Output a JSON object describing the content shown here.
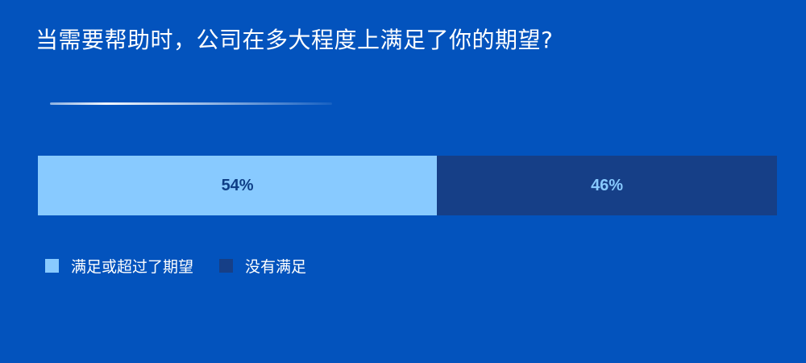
{
  "title": "当需要帮助时，公司在多大程度上满足了你的期望?",
  "colors": {
    "background": "#0353BD",
    "series_1": "#88CAFF",
    "series_2": "#163F87",
    "label_on_light": "#0E3E86",
    "label_on_dark": "#88CAFF"
  },
  "chart_data": {
    "type": "bar",
    "orientation": "horizontal-stacked-100",
    "title": "当需要帮助时，公司在多大程度上满足了你的期望?",
    "unit": "%",
    "series": [
      {
        "name": "满足或超过了期望",
        "values": [
          54
        ],
        "label": "54%"
      },
      {
        "name": "没有满足",
        "values": [
          46
        ],
        "label": "46%"
      }
    ],
    "legend_position": "bottom-left",
    "grid": false
  }
}
